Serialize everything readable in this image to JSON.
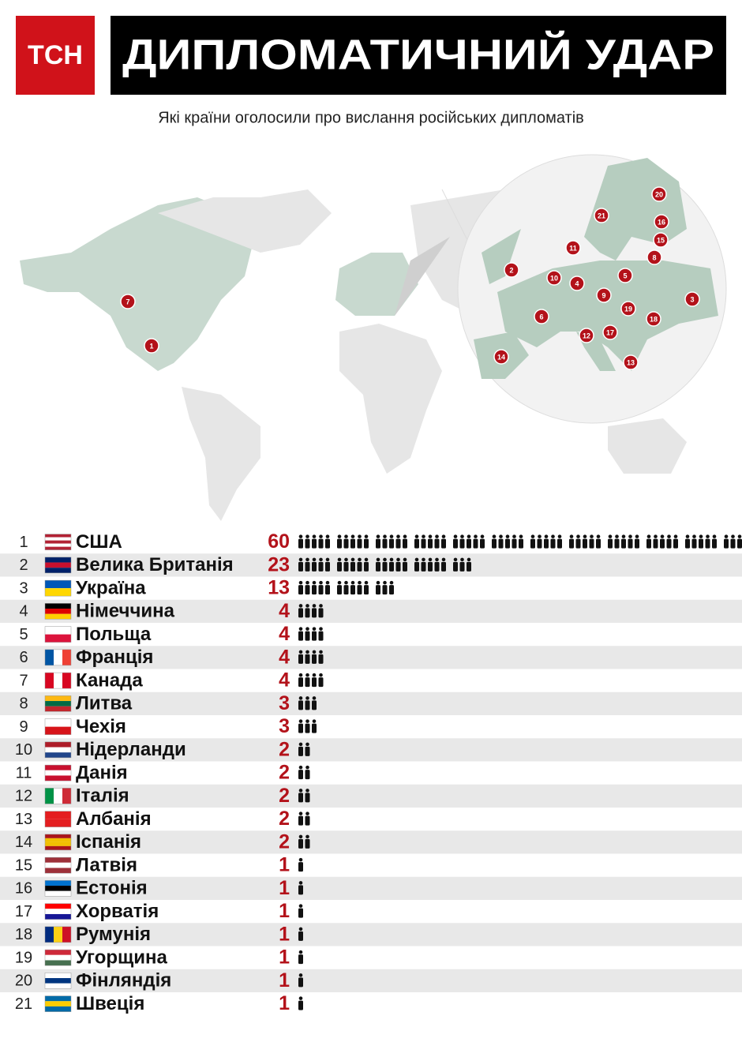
{
  "header": {
    "logo": "ТСН",
    "title": "ДИПЛОМАТИЧНИЙ УДАР",
    "subtitle": "Які країни оголосили про вислання російських дипломатів"
  },
  "rows": [
    {
      "rank": 1,
      "country": "США",
      "count": 60
    },
    {
      "rank": 2,
      "country": "Велика Британія",
      "count": 23
    },
    {
      "rank": 3,
      "country": "Україна",
      "count": 13
    },
    {
      "rank": 4,
      "country": "Німеччина",
      "count": 4
    },
    {
      "rank": 5,
      "country": "Польща",
      "count": 4
    },
    {
      "rank": 6,
      "country": "Франція",
      "count": 4
    },
    {
      "rank": 7,
      "country": "Канада",
      "count": 4
    },
    {
      "rank": 8,
      "country": "Литва",
      "count": 3
    },
    {
      "rank": 9,
      "country": "Чехія",
      "count": 3
    },
    {
      "rank": 10,
      "country": "Нідерланди",
      "count": 2
    },
    {
      "rank": 11,
      "country": "Данія",
      "count": 2
    },
    {
      "rank": 12,
      "country": "Італія",
      "count": 2
    },
    {
      "rank": 13,
      "country": "Албанія",
      "count": 2
    },
    {
      "rank": 14,
      "country": "Іспанія",
      "count": 2
    },
    {
      "rank": 15,
      "country": "Латвія",
      "count": 1
    },
    {
      "rank": 16,
      "country": "Естонія",
      "count": 1
    },
    {
      "rank": 17,
      "country": "Хорватія",
      "count": 1
    },
    {
      "rank": 18,
      "country": "Румунія",
      "count": 1
    },
    {
      "rank": 19,
      "country": "Угорщина",
      "count": 1
    },
    {
      "rank": 20,
      "country": "Фінляндія",
      "count": 1
    },
    {
      "rank": 21,
      "country": "Швеція",
      "count": 1
    }
  ]
}
